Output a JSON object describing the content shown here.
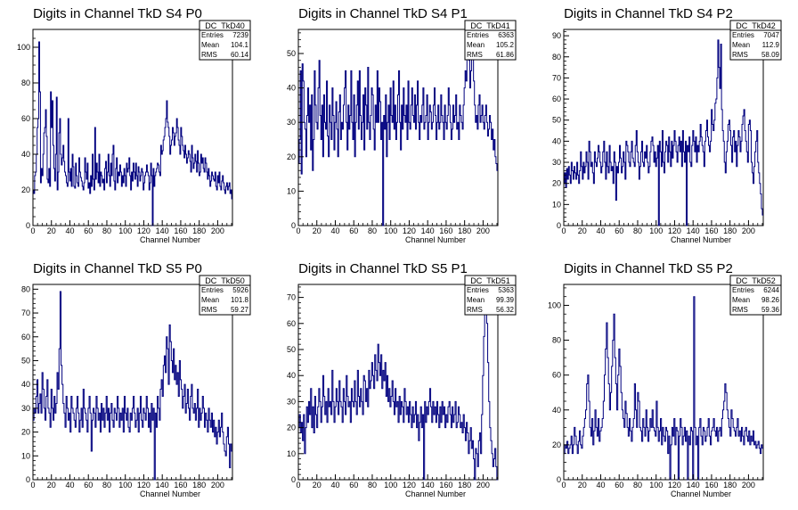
{
  "chart_data": [
    {
      "type": "histogram",
      "title": "Digits in Channel TkD S4 P0",
      "xlabel": "Channel Number",
      "ylabel": "",
      "xlim": [
        0,
        216
      ],
      "ylim": [
        0,
        110
      ],
      "xticks": [
        0,
        20,
        40,
        60,
        80,
        100,
        120,
        140,
        160,
        180,
        200
      ],
      "yticks": [
        0,
        20,
        40,
        60,
        80,
        100
      ],
      "stats": {
        "name": "DC_TkD40",
        "entries": "7239",
        "mean": "104.1",
        "rms": "60.14"
      },
      "values": [
        20,
        18,
        28,
        30,
        40,
        55,
        60,
        103,
        75,
        24,
        32,
        28,
        40,
        52,
        55,
        65,
        50,
        26,
        24,
        32,
        22,
        75,
        55,
        70,
        45,
        32,
        25,
        40,
        72,
        20,
        30,
        52,
        60,
        40,
        34,
        38,
        45,
        36,
        30,
        28,
        24,
        22,
        60,
        30,
        25,
        32,
        22,
        40,
        33,
        22,
        21,
        35,
        28,
        24,
        22,
        38,
        30,
        27,
        25,
        22,
        20,
        24,
        38,
        30,
        26,
        35,
        21,
        24,
        18,
        28,
        22,
        40,
        26,
        20,
        55,
        26,
        35,
        30,
        24,
        40,
        22,
        30,
        28,
        24,
        26,
        20,
        32,
        36,
        24,
        30,
        40,
        28,
        22,
        35,
        28,
        40,
        45,
        25,
        20,
        32,
        38,
        24,
        30,
        28,
        34,
        30,
        22,
        28,
        24,
        32,
        28,
        22,
        35,
        30,
        32,
        38,
        28,
        20,
        30,
        25,
        35,
        30,
        26,
        35,
        28,
        22,
        33,
        30,
        25,
        28,
        32,
        30,
        20,
        24,
        28,
        30,
        34,
        30,
        28,
        20,
        24,
        35,
        28,
        0,
        32,
        22,
        28,
        30,
        32,
        35,
        34,
        30,
        28,
        45,
        40,
        42,
        48,
        50,
        55,
        60,
        70,
        58,
        55,
        50,
        40,
        45,
        48,
        55,
        52,
        45,
        50,
        52,
        60,
        55,
        48,
        45,
        40,
        55,
        50,
        45,
        42,
        38,
        45,
        40,
        35,
        38,
        42,
        40,
        36,
        30,
        45,
        38,
        32,
        35,
        40,
        36,
        30,
        42,
        35,
        28,
        30,
        40,
        35,
        38,
        32,
        30,
        38,
        35,
        30,
        26,
        32,
        28,
        22,
        25,
        30,
        28,
        26,
        25,
        30,
        22,
        20,
        28,
        24,
        30,
        22,
        20,
        25,
        28,
        24,
        20,
        18,
        22,
        24,
        20,
        22,
        24,
        18,
        20,
        15
      ]
    },
    {
      "type": "histogram",
      "title": "Digits in Channel TkD S4 P1",
      "xlabel": "Channel Number",
      "ylabel": "",
      "xlim": [
        0,
        216
      ],
      "ylim": [
        0,
        57
      ],
      "xticks": [
        0,
        20,
        40,
        60,
        80,
        100,
        120,
        140,
        160,
        180,
        200
      ],
      "yticks": [
        0,
        10,
        20,
        30,
        40,
        50
      ],
      "stats": {
        "name": "DC_TkD41",
        "entries": "6363",
        "mean": "105.2",
        "rms": "61.86"
      },
      "values": [
        18,
        25,
        45,
        15,
        47,
        42,
        30,
        28,
        20,
        32,
        40,
        30,
        35,
        22,
        38,
        16,
        25,
        45,
        35,
        30,
        28,
        40,
        48,
        32,
        25,
        35,
        20,
        38,
        30,
        28,
        42,
        26,
        20,
        35,
        30,
        25,
        40,
        32,
        22,
        30,
        36,
        28,
        20,
        33,
        38,
        25,
        30,
        28,
        35,
        40,
        45,
        30,
        22,
        35,
        28,
        32,
        45,
        30,
        25,
        38,
        20,
        30,
        35,
        42,
        28,
        45,
        32,
        25,
        30,
        38,
        22,
        40,
        35,
        28,
        46,
        30,
        25,
        32,
        40,
        38,
        28,
        22,
        35,
        30,
        45,
        30,
        40,
        36,
        25,
        30,
        0,
        32,
        28,
        38,
        20,
        30,
        35,
        25,
        40,
        32,
        30,
        42,
        28,
        35,
        25,
        30,
        38,
        45,
        30,
        22,
        35,
        28,
        40,
        32,
        30,
        35,
        25,
        42,
        30,
        28,
        35,
        40,
        32,
        30,
        38,
        28,
        35,
        42,
        30,
        25,
        32,
        30,
        35,
        40,
        28,
        30,
        32,
        38,
        25,
        30,
        35,
        33,
        28,
        30,
        35,
        40,
        32,
        25,
        30,
        35,
        28,
        30,
        38,
        32,
        30,
        25,
        35,
        30,
        28,
        32,
        40,
        35,
        30,
        25,
        28,
        35,
        30,
        32,
        38,
        28,
        30,
        25,
        35,
        32,
        30,
        28,
        35,
        40,
        45,
        42,
        50,
        55,
        48,
        40,
        45,
        52,
        55,
        42,
        35,
        30,
        32,
        28,
        35,
        38,
        30,
        32,
        35,
        30,
        28,
        32,
        35,
        30,
        26,
        28,
        32,
        30,
        25,
        28,
        22,
        25,
        20,
        18,
        16
      ]
    },
    {
      "type": "histogram",
      "title": "Digits in Channel TkD S4 P2",
      "xlabel": "Channel Number",
      "ylabel": "",
      "xlim": [
        0,
        216
      ],
      "ylim": [
        0,
        93
      ],
      "xticks": [
        0,
        20,
        40,
        60,
        80,
        100,
        120,
        140,
        160,
        180,
        200
      ],
      "yticks": [
        0,
        10,
        20,
        30,
        40,
        50,
        60,
        70,
        80,
        90
      ],
      "stats": {
        "name": "DC_TkD42",
        "entries": "7047",
        "mean": "112.9",
        "rms": "58.09"
      },
      "values": [
        20,
        25,
        18,
        27,
        22,
        28,
        24,
        20,
        30,
        26,
        22,
        28,
        25,
        22,
        30,
        24,
        20,
        26,
        35,
        28,
        22,
        30,
        25,
        28,
        35,
        30,
        22,
        40,
        35,
        28,
        30,
        25,
        20,
        35,
        30,
        28,
        32,
        38,
        35,
        30,
        25,
        28,
        35,
        40,
        30,
        22,
        35,
        28,
        25,
        38,
        30,
        26,
        28,
        20,
        35,
        30,
        12,
        28,
        25,
        30,
        38,
        32,
        25,
        28,
        35,
        30,
        22,
        40,
        38,
        35,
        30,
        28,
        35,
        40,
        32,
        30,
        28,
        38,
        45,
        35,
        30,
        22,
        28,
        35,
        40,
        30,
        28,
        35,
        32,
        38,
        30,
        25,
        28,
        35,
        40,
        42,
        38,
        30,
        35,
        28,
        32,
        38,
        0,
        40,
        35,
        28,
        45,
        30,
        25,
        35,
        40,
        38,
        30,
        42,
        35,
        28,
        40,
        32,
        38,
        45,
        40,
        35,
        30,
        38,
        42,
        35,
        40,
        28,
        45,
        35,
        30,
        40,
        0,
        38,
        35,
        42,
        30,
        28,
        38,
        45,
        40,
        35,
        42,
        30,
        38,
        35,
        40,
        48,
        42,
        38,
        35,
        28,
        40,
        45,
        50,
        42,
        38,
        35,
        40,
        55,
        48,
        45,
        50,
        58,
        60,
        70,
        88,
        75,
        65,
        86,
        55,
        45,
        40,
        30,
        25,
        35,
        40,
        48,
        50,
        45,
        38,
        30,
        42,
        45,
        35,
        40,
        28,
        38,
        45,
        42,
        35,
        40,
        48,
        52,
        55,
        45,
        40,
        35,
        30,
        48,
        50,
        45,
        30,
        25,
        20,
        28,
        35,
        40,
        45,
        30,
        25,
        20,
        15,
        8,
        5
      ]
    },
    {
      "type": "histogram",
      "title": "Digits in Channel TkD S5 P0",
      "xlabel": "Channel Number",
      "ylabel": "",
      "xlim": [
        0,
        216
      ],
      "ylim": [
        0,
        82
      ],
      "xticks": [
        0,
        20,
        40,
        60,
        80,
        100,
        120,
        140,
        160,
        180,
        200
      ],
      "yticks": [
        0,
        10,
        20,
        30,
        40,
        50,
        60,
        70,
        80
      ],
      "stats": {
        "name": "DC_TkD50",
        "entries": "5926",
        "mean": "101.8",
        "rms": "59.27"
      },
      "values": [
        25,
        30,
        28,
        35,
        42,
        28,
        32,
        36,
        28,
        45,
        38,
        30,
        25,
        35,
        42,
        30,
        28,
        22,
        38,
        30,
        25,
        35,
        28,
        32,
        45,
        38,
        55,
        79,
        48,
        40,
        32,
        28,
        22,
        35,
        30,
        25,
        28,
        20,
        35,
        30,
        28,
        25,
        22,
        30,
        35,
        28,
        20,
        25,
        30,
        22,
        38,
        30,
        28,
        25,
        20,
        30,
        35,
        28,
        12,
        25,
        30,
        28,
        22,
        35,
        30,
        25,
        28,
        20,
        32,
        25,
        30,
        22,
        28,
        35,
        25,
        30,
        20,
        28,
        32,
        25,
        22,
        30,
        28,
        25,
        35,
        30,
        22,
        28,
        25,
        30,
        20,
        35,
        28,
        25,
        30,
        22,
        20,
        28,
        25,
        30,
        35,
        28,
        22,
        25,
        30,
        20,
        28,
        35,
        25,
        22,
        30,
        28,
        25,
        35,
        30,
        22,
        28,
        20,
        32,
        25,
        30,
        0,
        28,
        22,
        35,
        30,
        25,
        38,
        42,
        35,
        48,
        52,
        45,
        60,
        55,
        40,
        65,
        58,
        50,
        45,
        55,
        42,
        48,
        40,
        45,
        35,
        50,
        42,
        38,
        30,
        35,
        40,
        28,
        32,
        38,
        30,
        25,
        35,
        40,
        30,
        28,
        32,
        25,
        30,
        38,
        22,
        30,
        25,
        28,
        35,
        30,
        22,
        28,
        25,
        20,
        30,
        25,
        22,
        28,
        20,
        25,
        18,
        22,
        15,
        20,
        25,
        18,
        22,
        28,
        20,
        15,
        12,
        10,
        18,
        22,
        15,
        5,
        15,
        12
      ]
    },
    {
      "type": "histogram",
      "title": "Digits in Channel TkD S5 P1",
      "xlabel": "Channel Number",
      "ylabel": "",
      "xlim": [
        0,
        216
      ],
      "ylim": [
        0,
        75
      ],
      "xticks": [
        0,
        20,
        40,
        60,
        80,
        100,
        120,
        140,
        160,
        180,
        200
      ],
      "yticks": [
        0,
        10,
        20,
        30,
        40,
        50,
        60,
        70
      ],
      "stats": {
        "name": "DC_TkD51",
        "entries": "5363",
        "mean": "99.39",
        "rms": "56.32"
      },
      "values": [
        20,
        25,
        18,
        22,
        15,
        25,
        10,
        20,
        28,
        22,
        30,
        25,
        35,
        20,
        28,
        18,
        32,
        25,
        20,
        28,
        35,
        30,
        22,
        28,
        40,
        32,
        25,
        30,
        22,
        35,
        28,
        30,
        25,
        42,
        30,
        22,
        28,
        35,
        30,
        25,
        38,
        30,
        28,
        22,
        35,
        30,
        25,
        40,
        32,
        28,
        30,
        22,
        35,
        30,
        28,
        38,
        30,
        25,
        42,
        32,
        28,
        35,
        30,
        25,
        40,
        38,
        30,
        35,
        28,
        42,
        35,
        38,
        45,
        40,
        35,
        48,
        42,
        38,
        52,
        45,
        40,
        48,
        35,
        42,
        38,
        45,
        32,
        40,
        30,
        35,
        28,
        32,
        38,
        30,
        25,
        35,
        28,
        30,
        22,
        32,
        25,
        30,
        28,
        22,
        35,
        30,
        25,
        28,
        22,
        30,
        25,
        20,
        28,
        22,
        25,
        30,
        20,
        25,
        15,
        22,
        28,
        20,
        25,
        0,
        30,
        22,
        28,
        25,
        30,
        35,
        28,
        22,
        30,
        25,
        28,
        22,
        30,
        25,
        20,
        28,
        22,
        30,
        25,
        28,
        20,
        25,
        22,
        28,
        30,
        25,
        20,
        28,
        22,
        25,
        30,
        20,
        22,
        28,
        25,
        20,
        22,
        18,
        25,
        20,
        15,
        22,
        18,
        10,
        15,
        20,
        12,
        15,
        8,
        0,
        12,
        10,
        5,
        15,
        18,
        10,
        25,
        40,
        55,
        65,
        72,
        60,
        45,
        30,
        20,
        15,
        10,
        5,
        8,
        12,
        5,
        0
      ]
    },
    {
      "type": "histogram",
      "title": "Digits in Channel TkD S5 P2",
      "xlabel": "Channel Number",
      "ylabel": "",
      "xlim": [
        0,
        216
      ],
      "ylim": [
        0,
        112
      ],
      "xticks": [
        0,
        20,
        40,
        60,
        80,
        100,
        120,
        140,
        160,
        180,
        200
      ],
      "yticks": [
        0,
        20,
        40,
        60,
        80,
        100
      ],
      "stats": {
        "name": "DC_TkD52",
        "entries": "6244",
        "mean": "98.26",
        "rms": "59.36"
      },
      "values": [
        15,
        20,
        18,
        22,
        15,
        18,
        20,
        25,
        15,
        20,
        30,
        25,
        20,
        15,
        22,
        28,
        20,
        18,
        25,
        30,
        35,
        40,
        55,
        60,
        45,
        30,
        25,
        35,
        20,
        28,
        40,
        30,
        25,
        35,
        22,
        28,
        30,
        35,
        45,
        60,
        75,
        90,
        70,
        55,
        40,
        50,
        65,
        80,
        95,
        70,
        55,
        40,
        60,
        75,
        65,
        50,
        40,
        35,
        30,
        45,
        38,
        30,
        25,
        35,
        28,
        22,
        30,
        35,
        55,
        40,
        30,
        50,
        45,
        30,
        28,
        22,
        35,
        30,
        25,
        40,
        30,
        22,
        28,
        35,
        30,
        40,
        30,
        28,
        25,
        45,
        30,
        22,
        28,
        35,
        20,
        30,
        25,
        22,
        30,
        28,
        15,
        25,
        0,
        20,
        30,
        25,
        35,
        20,
        30,
        28,
        0,
        25,
        35,
        30,
        20,
        25,
        30,
        22,
        28,
        0,
        25,
        20,
        30,
        28,
        0,
        105,
        30,
        20,
        25,
        0,
        30,
        35,
        25,
        20,
        30,
        28,
        22,
        25,
        30,
        35,
        25,
        20,
        28,
        30,
        35,
        28,
        25,
        30,
        22,
        28,
        30,
        25,
        35,
        40,
        45,
        55,
        50,
        40,
        35,
        30,
        25,
        40,
        35,
        30,
        28,
        25,
        30,
        35,
        25,
        28,
        22,
        30,
        25,
        20,
        28,
        30,
        25,
        22,
        28,
        20,
        25,
        22,
        28,
        20,
        22,
        18,
        20,
        22,
        18,
        15,
        20,
        18
      ]
    }
  ]
}
